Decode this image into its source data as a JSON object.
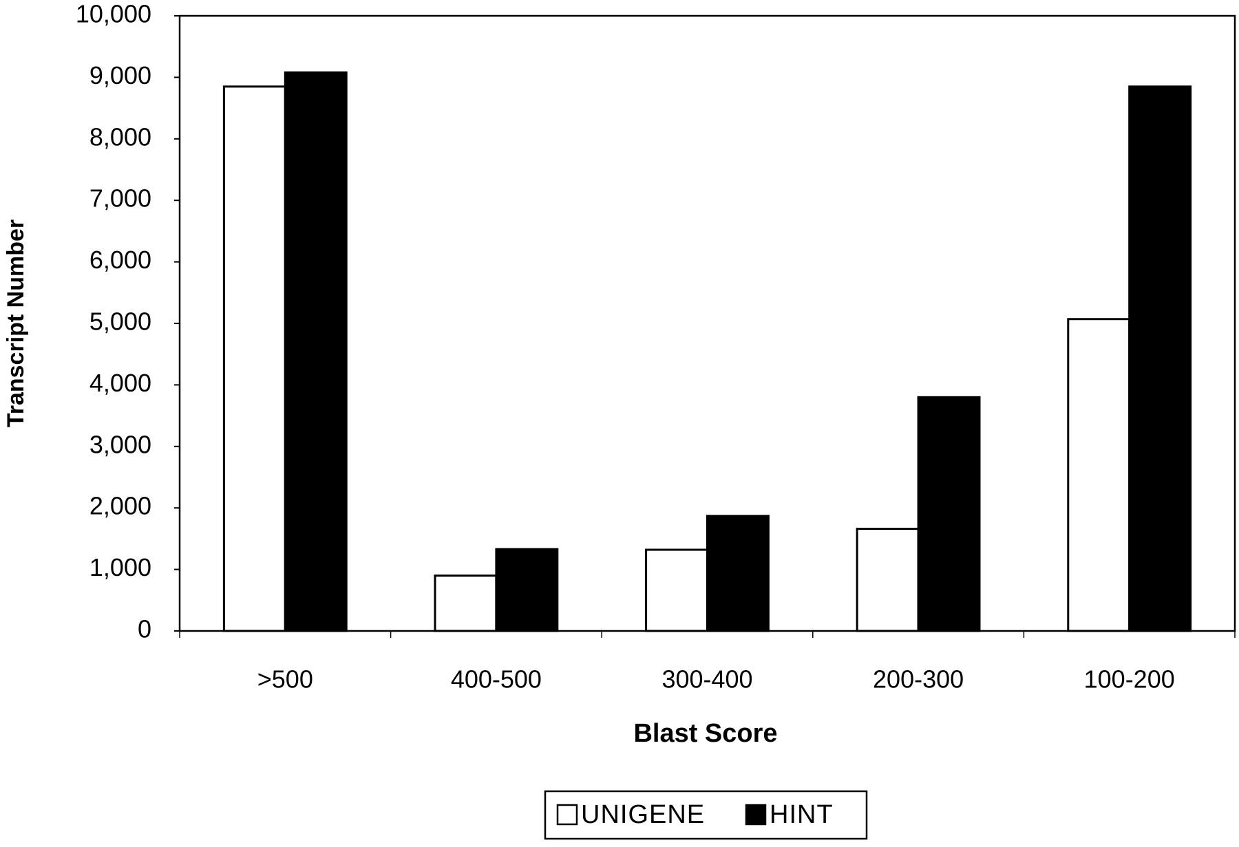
{
  "chart_data": {
    "type": "bar",
    "x_label": "Blast Score",
    "y_label": "Transcript Number",
    "categories": [
      ">500",
      "400-500",
      "300-400",
      "200-300",
      "100-200"
    ],
    "series": [
      {
        "name": "UNIGENE",
        "color": "#ffffff",
        "values": [
          8850,
          900,
          1320,
          1660,
          5070
        ]
      },
      {
        "name": "HINT",
        "color": "#000000",
        "values": [
          9080,
          1330,
          1870,
          3800,
          8850
        ]
      }
    ],
    "ylim": [
      0,
      10000
    ],
    "yticks": [
      0,
      {
        "value": 1000,
        "label": "1,000"
      },
      {
        "value": 2000,
        "label": "2,000"
      },
      {
        "value": 3000,
        "label": "3,000"
      },
      {
        "value": 4000,
        "label": "4,000"
      },
      {
        "value": 5000,
        "label": "5,000"
      },
      {
        "value": 6000,
        "label": "6,000"
      },
      {
        "value": 7000,
        "label": "7,000"
      },
      {
        "value": 8000,
        "label": "8,000"
      },
      {
        "value": 9000,
        "label": "9,000"
      },
      {
        "value": 10000,
        "label": "10,000"
      }
    ],
    "grid": false,
    "legend": "bottom"
  }
}
